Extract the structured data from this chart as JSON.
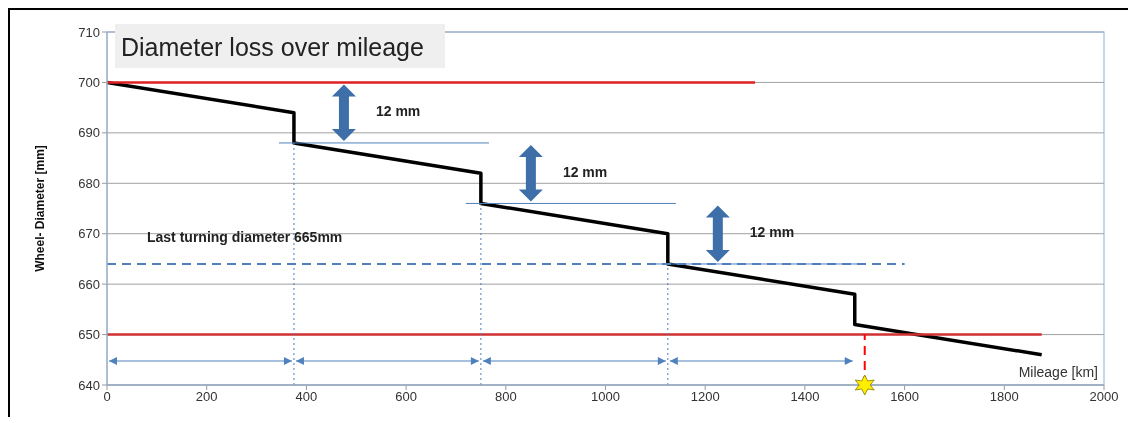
{
  "chart_data": {
    "type": "line",
    "title": "Diameter loss over mileage",
    "xlabel": "Mileage [km]",
    "ylabel": "Wheel- Diameter [mm]",
    "xlim": [
      0,
      2000
    ],
    "xticks": [
      0,
      200,
      400,
      600,
      800,
      1000,
      1200,
      1400,
      1600,
      1800,
      2000
    ],
    "ylim": [
      640,
      710
    ],
    "yticks": [
      640,
      650,
      660,
      670,
      680,
      690,
      700,
      710
    ],
    "grid": "y",
    "series": [
      {
        "color": "#000000",
        "line_style": "solid",
        "x": [
          0,
          375,
          375,
          750,
          750,
          1125,
          1125,
          1500,
          1500,
          1875
        ],
        "values": [
          700,
          694,
          688,
          682,
          676,
          670,
          664,
          658,
          652,
          646
        ]
      },
      {
        "color": "#e02020",
        "line_style": "solid",
        "x": [
          0,
          1300
        ],
        "values": [
          700,
          700
        ]
      },
      {
        "color": "#d03030",
        "line_style": "solid",
        "x": [
          0,
          1875
        ],
        "values": [
          650,
          650
        ]
      },
      {
        "color": "#4f81bd",
        "line_style": "dashed",
        "x": [
          0,
          1600
        ],
        "values": [
          664,
          664
        ]
      },
      {
        "color": "#4a7ebb",
        "line_style": "dotted",
        "x": [
          375,
          375
        ],
        "values": [
          640,
          688
        ]
      },
      {
        "color": "#4a7ebb",
        "line_style": "dotted",
        "x": [
          750,
          750
        ],
        "values": [
          640,
          676
        ]
      },
      {
        "color": "#4a7ebb",
        "line_style": "dotted",
        "x": [
          1125,
          1125
        ],
        "values": [
          640,
          664
        ]
      },
      {
        "color": "#ff0000",
        "line_style": "dashed",
        "x": [
          1520,
          1520
        ],
        "values": [
          640,
          650
        ]
      }
    ],
    "annotations": [
      "Last turning diameter 665mm",
      "12 mm",
      "12 mm",
      "12 mm"
    ]
  }
}
